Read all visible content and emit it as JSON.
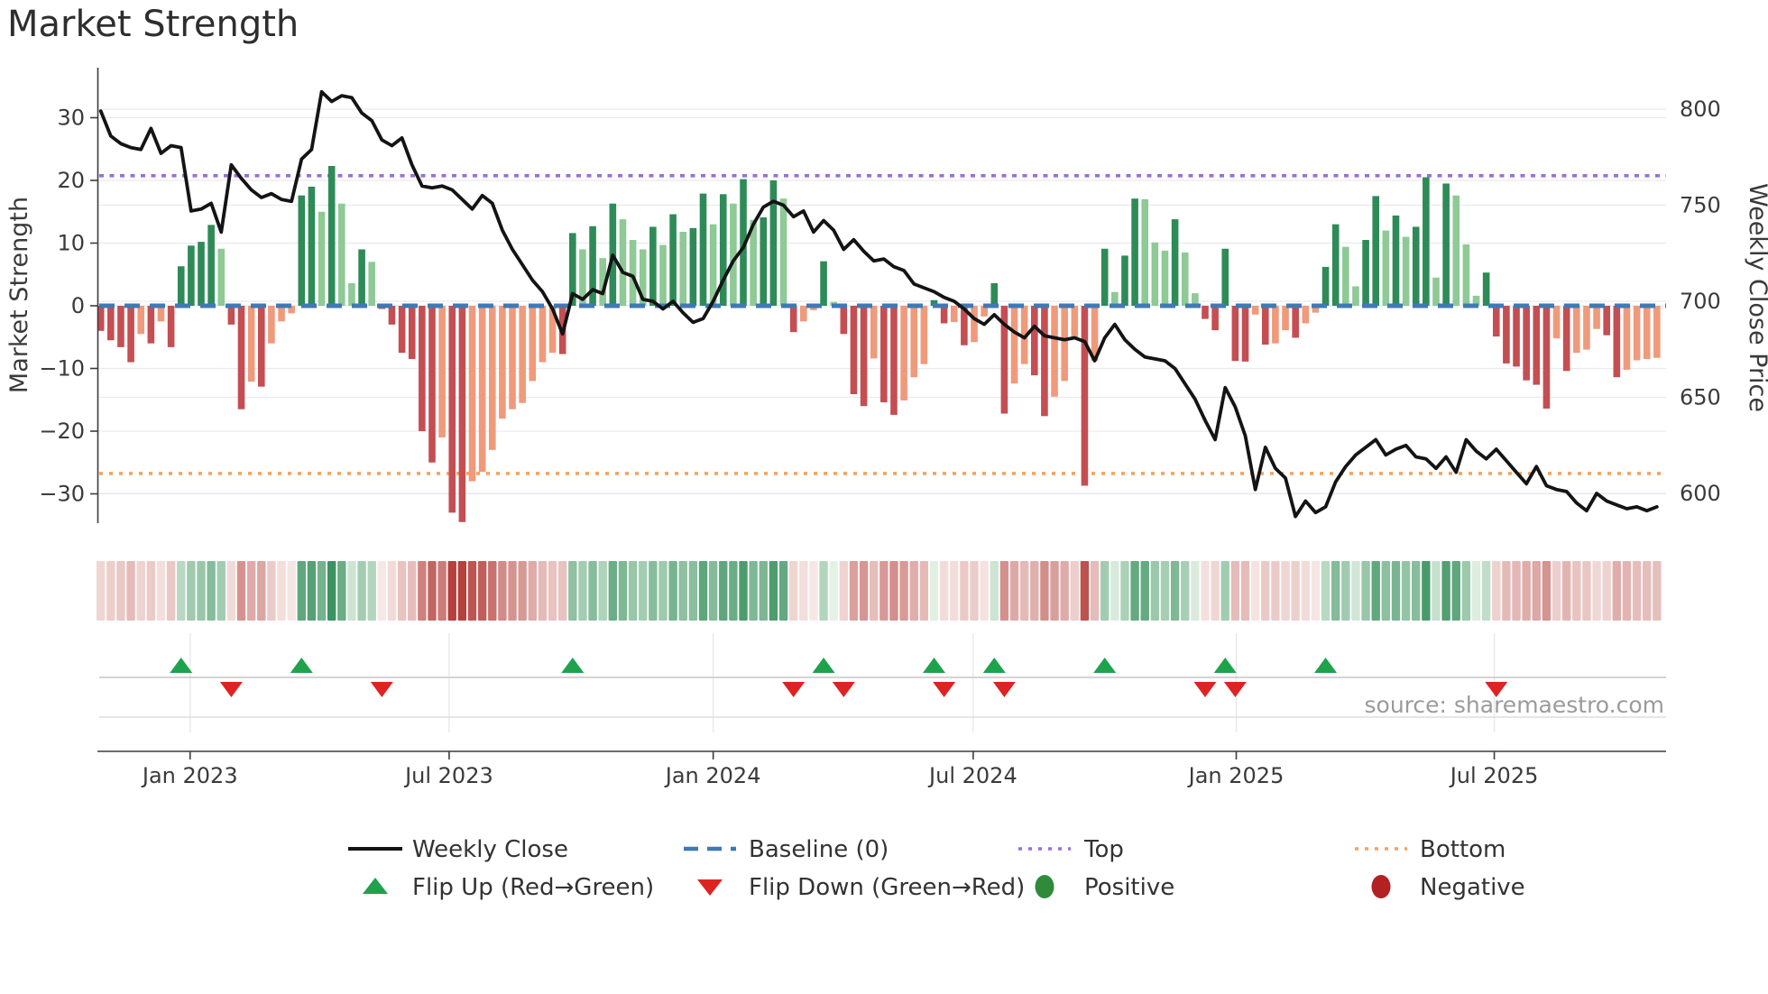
{
  "title": "Market Strength",
  "source_text": "source: sharemaestro.com",
  "axes": {
    "left_label": "Market Strength",
    "right_label": "Weekly Close Price",
    "left_ticks": [
      30,
      20,
      10,
      0,
      -10,
      -20,
      -30
    ],
    "right_ticks": [
      800,
      750,
      700,
      650,
      600
    ],
    "x_ticks": [
      {
        "label": "Jan 2023",
        "week": 9.9
      },
      {
        "label": "Jul 2023",
        "week": 35.7
      },
      {
        "label": "Jan 2024",
        "week": 62.0
      },
      {
        "label": "Jul 2024",
        "week": 87.9
      },
      {
        "label": "Jan 2025",
        "week": 114.1
      },
      {
        "label": "Jul 2025",
        "week": 139.8
      }
    ]
  },
  "legend": {
    "items": [
      {
        "label": "Weekly Close",
        "swatch": "line",
        "color": "#141414"
      },
      {
        "label": "Baseline (0)",
        "swatch": "dashed",
        "color": "#3f79b6"
      },
      {
        "label": "Top",
        "swatch": "dotted",
        "color": "#9a6fdb"
      },
      {
        "label": "Bottom",
        "swatch": "dotted",
        "color": "#f2a45f"
      },
      {
        "label": "Flip Up (Red→Green)",
        "swatch": "triangle-up",
        "color": "#1fa24c"
      },
      {
        "label": "Flip Down (Green→Red)",
        "swatch": "triangle-down",
        "color": "#df2320"
      },
      {
        "label": "Positive",
        "swatch": "dot",
        "color": "#2f8b3a"
      },
      {
        "label": "Negative",
        "swatch": "dot",
        "color": "#b22222"
      }
    ]
  },
  "colors": {
    "bar_pos_rising": "#2e8b57",
    "bar_pos_falling": "#8fc996",
    "bar_neg_falling": "#c44e52",
    "bar_neg_rising": "#ef9a7b",
    "close_line": "#141414",
    "baseline": "#3f79b6",
    "top_line": "#9a6fdb",
    "bottom_line": "#f2a45f",
    "flip_up": "#1fa24c",
    "flip_down": "#df2320",
    "grid": "#e9e9f1",
    "axis_text": "#3a3a3a",
    "source_text": "#9b9b9b"
  },
  "chart_data": {
    "type": "combo",
    "freq": "weekly",
    "start_date": "2022-10-31",
    "n_weeks": 156,
    "baseline": 0,
    "top_threshold": 20.75,
    "bottom_threshold": -26.75,
    "ylim_left": [
      -34.7,
      38.0
    ],
    "ylim_right": [
      584.5,
      821.6
    ],
    "flip_up_weeks": [
      9,
      21,
      48,
      73,
      84,
      90,
      101,
      113,
      123
    ],
    "flip_down_weeks": [
      14,
      29,
      70,
      75,
      85,
      91,
      111,
      114,
      140
    ],
    "series": [
      {
        "name": "Market Strength",
        "type": "bar",
        "axis": "left",
        "values": [
          -4,
          -5.5,
          -6.6,
          -9,
          -4.5,
          -6,
          -2.5,
          -6.6,
          6.3,
          9.6,
          10.2,
          12.9,
          9.1,
          -3,
          -16.5,
          -12.1,
          -12.9,
          -6,
          -2.5,
          -1.2,
          17.6,
          19,
          15,
          22.3,
          16.3,
          3.6,
          9,
          7,
          -0.5,
          -3,
          -7.5,
          -8.5,
          -20,
          -25,
          -21,
          -33,
          -34.5,
          -28,
          -26.5,
          -23,
          -18,
          -16.5,
          -15.5,
          -12,
          -9,
          -7.5,
          -7.7,
          11.6,
          9,
          12.7,
          7.6,
          16.3,
          13.8,
          10.5,
          9,
          12.6,
          9.7,
          14.6,
          11.8,
          12.4,
          17.9,
          13,
          17.8,
          16.3,
          20.2,
          13.7,
          14.1,
          20,
          17.1,
          -4.2,
          -2.5,
          -0.7,
          7.1,
          0.6,
          -4.5,
          -14.1,
          -16,
          -8.4,
          -15.4,
          -17.4,
          -15.1,
          -11.4,
          -9.3,
          0.9,
          -2.8,
          -2.6,
          -6.3,
          -5.8,
          -1.7,
          3.6,
          -17.2,
          -12.4,
          -9.3,
          -11.1,
          -17.6,
          -14.5,
          -12,
          -5.4,
          -28.7,
          -8.8,
          9.1,
          2.2,
          8,
          17.1,
          17,
          10.1,
          8.8,
          13.8,
          8.5,
          2,
          -2.1,
          -3.9,
          9.1,
          -8.8,
          -8.9,
          -1.4,
          -6.2,
          -6,
          -3.9,
          -5.1,
          -2.8,
          -1.1,
          6.2,
          13,
          9.4,
          3.1,
          10.5,
          17.5,
          12,
          14.4,
          11,
          12.6,
          20.5,
          4.5,
          19.5,
          17.6,
          9.8,
          1.6,
          5.3,
          -4.9,
          -9.2,
          -9.7,
          -11.9,
          -12.6,
          -16.4,
          -5.2,
          -10.4,
          -7.5,
          -7,
          -3.7,
          -4.7,
          -11.4,
          -10.2,
          -8.7,
          -8.5,
          -8.3
        ]
      },
      {
        "name": "Weekly Close",
        "type": "line",
        "axis": "right",
        "values": [
          799,
          786,
          782,
          780,
          779,
          790,
          777,
          781,
          780,
          747,
          748,
          751,
          736,
          771,
          764,
          758,
          754,
          756,
          753,
          752,
          774,
          779,
          809,
          804,
          807,
          806,
          798,
          794,
          784,
          781,
          785,
          771,
          760,
          759,
          760,
          758,
          753,
          748,
          755,
          751,
          737,
          727,
          719,
          711,
          705,
          696,
          683,
          704,
          701,
          706,
          704,
          724,
          715,
          713,
          701,
          700,
          696,
          700,
          694,
          689,
          691,
          700,
          711,
          721,
          728,
          740,
          749,
          752,
          750,
          744,
          747,
          736,
          742,
          737,
          727,
          732,
          726,
          721,
          722,
          718,
          716,
          709,
          707,
          705,
          702,
          700,
          696,
          691,
          688,
          693,
          688,
          684,
          681,
          687,
          682,
          681,
          680,
          681,
          679,
          669,
          681,
          688,
          680,
          675,
          671,
          670,
          669,
          665,
          657,
          649,
          638,
          628,
          655,
          645,
          630,
          602,
          624,
          613,
          608,
          588,
          596,
          590,
          593,
          606,
          614,
          620,
          624,
          628,
          620,
          623,
          625,
          619,
          618,
          613,
          619,
          611,
          628,
          622,
          618,
          623,
          617,
          611,
          605,
          614,
          604,
          602,
          601,
          595,
          591,
          600,
          596,
          594,
          592,
          593,
          591,
          593
        ]
      }
    ],
    "heatmap_note": "strip cells = weekly strength sign (green/red) with shade proportional to magnitude",
    "legend_position": "bottom"
  }
}
